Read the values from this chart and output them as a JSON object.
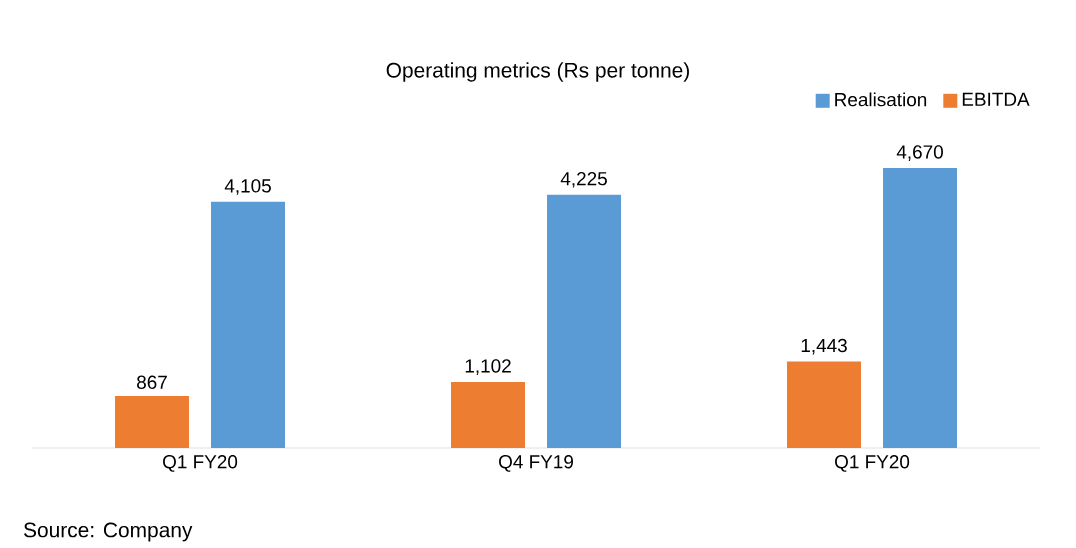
{
  "chart_data": {
    "type": "bar",
    "title": "Operating metrics (Rs per tonne)",
    "categories": [
      "Q1 FY20",
      "Q4 FY19",
      "Q1 FY20"
    ],
    "series": [
      {
        "name": "EBITDA",
        "color": "#ed7d31",
        "values": [
          867,
          1102,
          1443
        ],
        "value_labels": [
          "867",
          "1,102",
          "1,443"
        ]
      },
      {
        "name": "Realisation",
        "color": "#5b9bd5",
        "values": [
          4105,
          4225,
          4670
        ],
        "value_labels": [
          "4,105",
          "4,225",
          "4,670"
        ]
      }
    ],
    "legend": "top right",
    "annotations": [
      "Source: Company"
    ]
  }
}
